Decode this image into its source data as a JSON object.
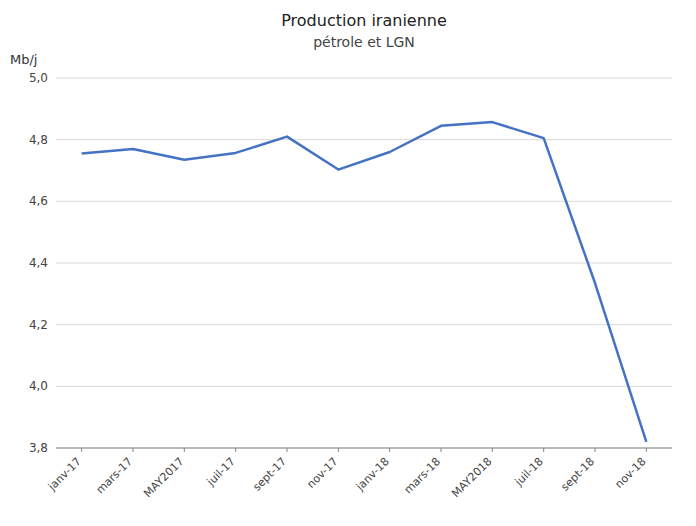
{
  "chart_data": {
    "type": "line",
    "title": "Production iranienne",
    "subtitle": "pétrole et LGN",
    "ylabel": "Mb/j",
    "categories": [
      "janv-17",
      "mars-17",
      "MAY2017",
      "juil-17",
      "sept-17",
      "nov-17",
      "janv-18",
      "mars-18",
      "MAY2018",
      "juil-18",
      "sept-18",
      "nov-18"
    ],
    "values": [
      4.755,
      4.77,
      4.735,
      4.757,
      4.81,
      4.703,
      4.76,
      4.845,
      4.857,
      4.805,
      4.335,
      3.82
    ],
    "color": "#4472C4",
    "ylim": [
      3.8,
      5.0
    ],
    "yticks": [
      {
        "value": 3.8,
        "label": "3,8"
      },
      {
        "value": 4.0,
        "label": "4,0"
      },
      {
        "value": 4.2,
        "label": "4,2"
      },
      {
        "value": 4.4,
        "label": "4,4"
      },
      {
        "value": 4.6,
        "label": "4,6"
      },
      {
        "value": 4.8,
        "label": "4,8"
      },
      {
        "value": 5.0,
        "label": "5,0"
      }
    ],
    "grid": true
  }
}
